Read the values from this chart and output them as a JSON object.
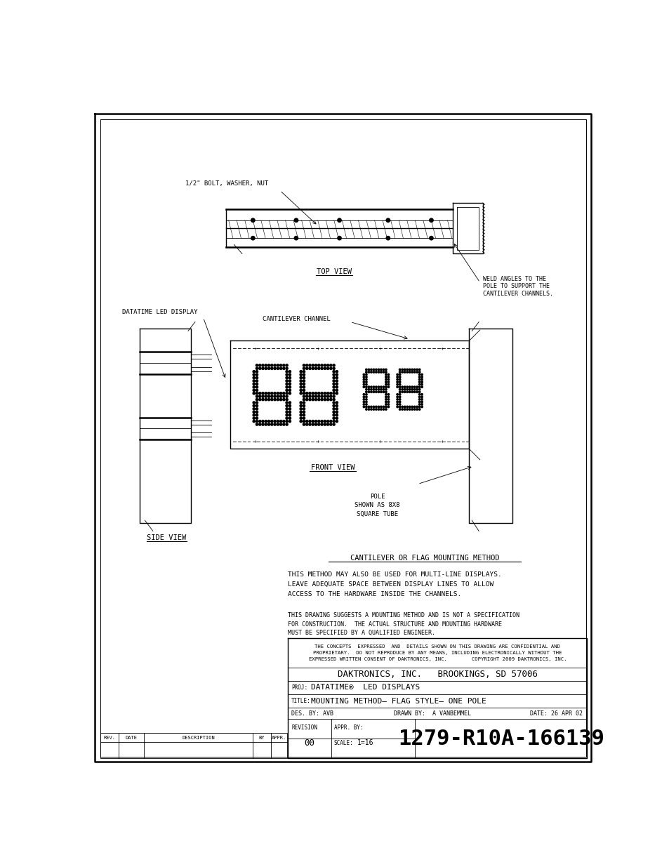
{
  "bg_color": "#ffffff",
  "line_color": "#000000",
  "title_method": "CANTILEVER OR FLAG MOUNTING METHOD",
  "proj_label": "PROJ:",
  "proj_value": "DATATIME®  LED DISPLAYS",
  "title_label": "TITLE:",
  "title_value": "MOUNTING METHOD– FLAG STYLE– ONE POLE",
  "des_by": "DES. BY: AVB",
  "drawn_by": "DRAWN BY:  A VANBEMMEL",
  "date": "DATE: 26 APR 02",
  "revision": "00",
  "scale": "1=16",
  "drawing_number": "1279-R10A-166139",
  "company": "DAKTRONICS, INC.   BROOKINGS, SD 57006",
  "confidential_text": "THE CONCEPTS  EXPRESSED  AND  DETAILS SHOWN ON THIS DRAWING ARE CONFIDENTIAL AND\nPROPRIETARY.  DO NOT REPRODUCE BY ANY MEANS, INCLUDING ELECTRONICALLY WITHOUT THE\nEXPRESSED WRITTEN CONSENT OF DAKTRONICS, INC.        COPYRIGHT 2009 DAKTRONICS, INC.",
  "note1": "THIS METHOD MAY ALSO BE USED FOR MULTI-LINE DISPLAYS.\nLEAVE ADEQUATE SPACE BETWEEN DISPLAY LINES TO ALLOW\nACCESS TO THE HARDWARE INSIDE THE CHANNELS.",
  "note2": "THIS DRAWING SUGGESTS A MOUNTING METHOD AND IS NOT A SPECIFICATION\nFOR CONSTRUCTION.  THE ACTUAL STRUCTURE AND MOUNTING HARDWARE\nMUST BE SPECIFIED BY A QUALIFIED ENGINEER.",
  "label_bolt": "1/2\" BOLT, WASHER, NUT",
  "label_datatime": "DATATIME LED DISPLAY",
  "label_cantilever": "CANTILEVER CHANNEL",
  "label_weld": "WELD ANGLES TO THE\nPOLE TO SUPPORT THE\nCANTILEVER CHANNELS.",
  "label_top_view": "TOP VIEW",
  "label_front_view": "FRONT VIEW",
  "label_side_view": "SIDE VIEW",
  "label_pole": "POLE\nSHOWN AS 8X8\nSQUARE TUBE",
  "rev_header": [
    "REV.",
    "DATE",
    "DESCRIPTION",
    "BY",
    "APPR."
  ]
}
